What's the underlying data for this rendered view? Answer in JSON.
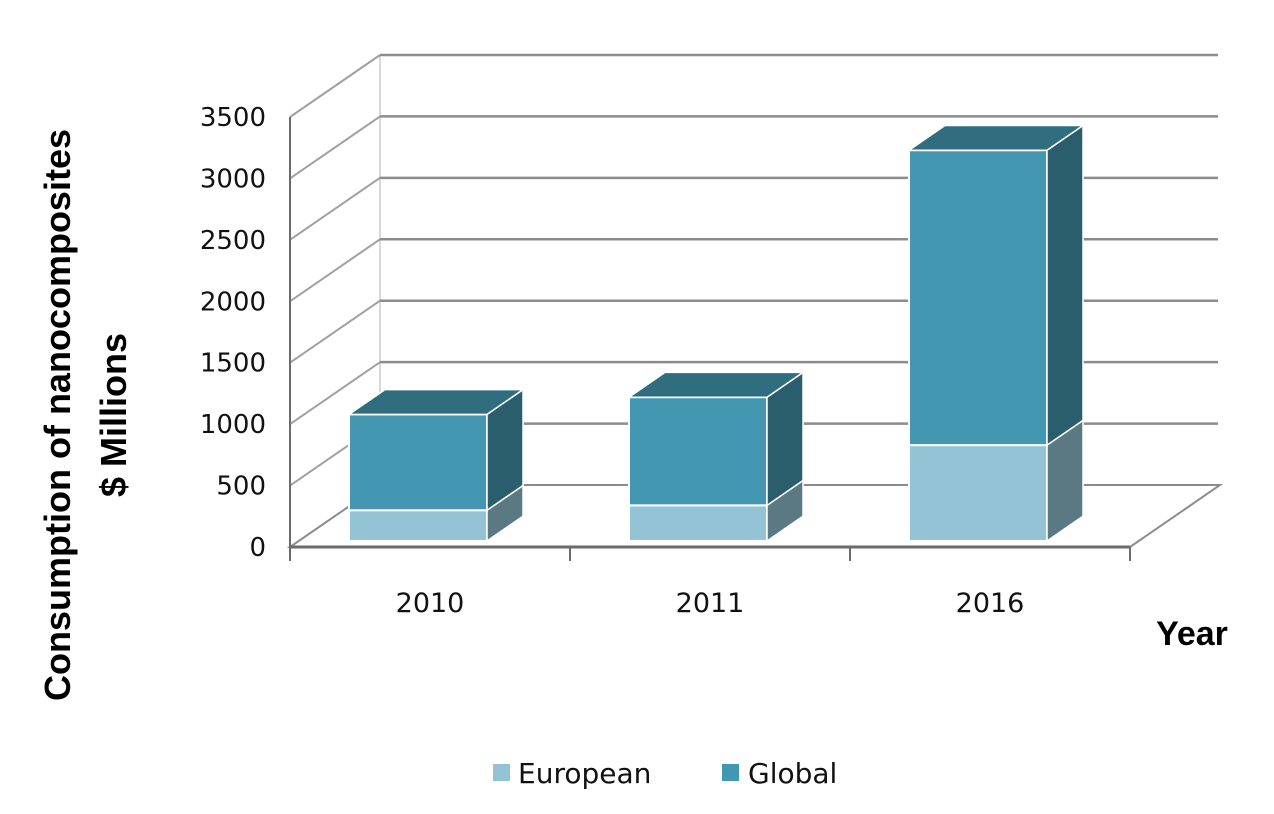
{
  "chart_data": {
    "type": "bar",
    "stacked": true,
    "three_d": true,
    "categories": [
      "2010",
      "2011",
      "2016"
    ],
    "series": [
      {
        "name": "European",
        "values": [
          250,
          290,
          780
        ],
        "color": "#93c3d4"
      },
      {
        "name": "Global",
        "values": [
          780,
          880,
          2400
        ],
        "color": "#4397b0"
      }
    ],
    "title": "",
    "ylabel_lines": [
      "Consumption of nanocomposites",
      "$ Millions"
    ],
    "xlabel": "Year",
    "ylim": [
      0,
      3500
    ],
    "yticks": [
      0,
      500,
      1000,
      1500,
      2000,
      2500,
      3000,
      3500
    ],
    "grid": true,
    "legend_position": "bottom"
  }
}
